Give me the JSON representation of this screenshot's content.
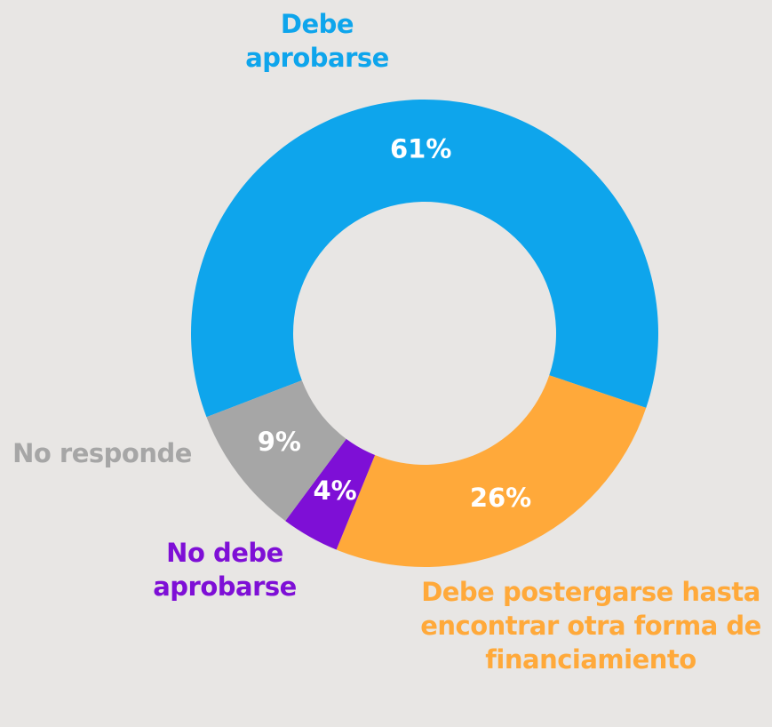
{
  "chart_data": {
    "type": "donut",
    "categories": [
      "Debe aprobarse",
      "Debe postergarse hasta encontrar otra forma de financiamiento",
      "No debe aprobarse",
      "No responde"
    ],
    "values": [
      61,
      26,
      4,
      9
    ],
    "value_labels": [
      "61%",
      "26%",
      "4%",
      "9%"
    ],
    "colors": [
      "#0ea5ec",
      "#ffa93a",
      "#7e0fd6",
      "#a6a6a6"
    ]
  }
}
